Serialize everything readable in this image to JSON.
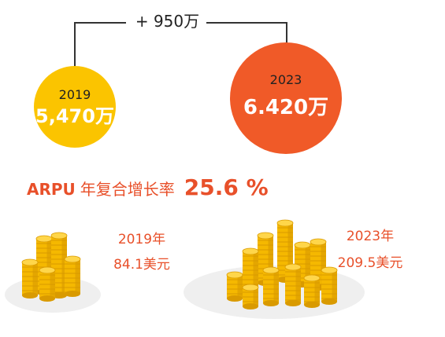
{
  "growth": {
    "delta_label": "+ 950万"
  },
  "users_2019": {
    "year": "2019",
    "value": "5,470万"
  },
  "users_2023": {
    "year": "2023",
    "value": "6.420万"
  },
  "arpu": {
    "label": "ARPU",
    "label_cn": "年复合增长率",
    "rate": "25.6 %"
  },
  "arpu_2019": {
    "year": "2019年",
    "value": "84.1美元"
  },
  "arpu_2023": {
    "year": "2023年",
    "value": "209.5美元"
  },
  "colors": {
    "yellow": "#FBC400",
    "orange": "#F05A28",
    "accent_text": "#E8502A",
    "coin": "#F5B800",
    "coin_dark": "#D99A00",
    "coin_light": "#FFD64A"
  }
}
